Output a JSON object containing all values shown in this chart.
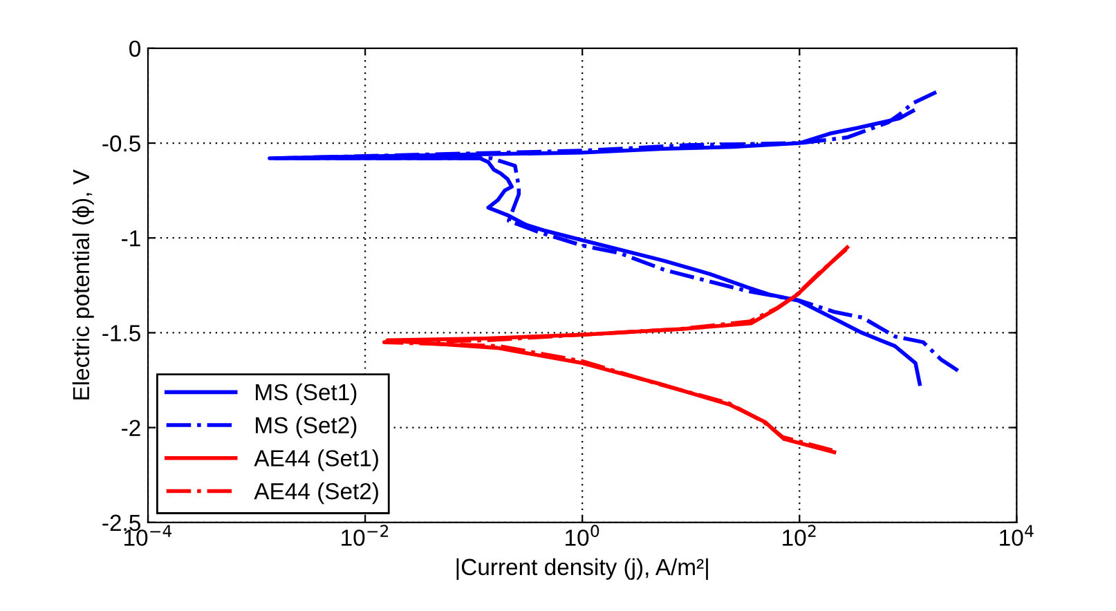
{
  "chart_data": {
    "type": "line",
    "xlabel": "|Current density (j), A/m²|",
    "ylabel": "Electric potential (ϕ), V",
    "log": "x",
    "xlim": [
      0.0001,
      10000
    ],
    "ylim": [
      -2.5,
      0
    ],
    "xticks": [
      {
        "value": 0.0001,
        "label": "10$^{−4}$"
      },
      {
        "value": 0.01,
        "label": "10$^{−2}$"
      },
      {
        "value": 1,
        "label": "10$^{0}$"
      },
      {
        "value": 100,
        "label": "10$^{2}$"
      },
      {
        "value": 10000,
        "label": "10$^{4}$"
      }
    ],
    "yticks": [
      -2.5,
      -2,
      -1.5,
      -1,
      -0.5,
      0
    ],
    "grid": true,
    "legend": "bottom left",
    "marker": "none",
    "series": [
      {
        "name": "MS (Set1)",
        "color": "#0000ff",
        "line_style": "solid",
        "x": [
          1280,
          1170,
          755,
          375,
          234,
          97,
          54,
          33,
          14.9,
          5.6,
          0.97,
          0.44,
          0.3,
          0.205,
          0.136,
          0.167,
          0.193,
          0.224,
          0.205,
          0.177,
          0.153,
          0.136,
          0.114,
          0.029,
          0.0066,
          0.00132,
          0.0103,
          0.093,
          1.0,
          5.6,
          24.4,
          100,
          190,
          344,
          828,
          1110
        ],
        "values": [
          -1.77,
          -1.66,
          -1.57,
          -1.5,
          -1.44,
          -1.33,
          -1.3,
          -1.26,
          -1.19,
          -1.12,
          -1.01,
          -0.96,
          -0.93,
          -0.88,
          -0.84,
          -0.8,
          -0.75,
          -0.73,
          -0.69,
          -0.66,
          -0.64,
          -0.6,
          -0.58,
          -0.58,
          -0.58,
          -0.58,
          -0.57,
          -0.56,
          -0.55,
          -0.53,
          -0.52,
          -0.5,
          -0.45,
          -0.42,
          -0.37,
          -0.33
        ]
      },
      {
        "name": "MS (Set2)",
        "color": "#0000ff",
        "line_style": "dashdot",
        "x": [
          2880,
          2000,
          1380,
          760,
          380,
          209,
          100,
          33,
          5.8,
          2.2,
          1.0,
          0.4,
          0.21,
          0.26,
          0.26,
          0.24,
          0.145,
          0.0015,
          1.0,
          10,
          100,
          275,
          660,
          830,
          1100,
          2000
        ],
        "values": [
          -1.7,
          -1.64,
          -1.55,
          -1.52,
          -1.42,
          -1.39,
          -1.33,
          -1.28,
          -1.17,
          -1.08,
          -1.04,
          -0.97,
          -0.91,
          -0.77,
          -0.73,
          -0.62,
          -0.58,
          -0.58,
          -0.54,
          -0.51,
          -0.5,
          -0.47,
          -0.39,
          -0.35,
          -0.29,
          -0.22
        ]
      },
      {
        "name": "AE44 (Set1)",
        "color": "#ff0000",
        "line_style": "solid",
        "x": [
          209,
          72,
          48,
          23,
          5.2,
          1.0,
          0.166,
          0.016,
          0.126,
          1.0,
          8.3,
          36,
          63,
          95,
          158,
          275
        ],
        "values": [
          -2.13,
          -2.06,
          -1.97,
          -1.88,
          -1.77,
          -1.66,
          -1.58,
          -1.54,
          -1.53,
          -1.51,
          -1.48,
          -1.45,
          -1.37,
          -1.3,
          -1.18,
          -1.05
        ]
      },
      {
        "name": "AE44 (Set2)",
        "color": "#ff0000",
        "line_style": "dashdot",
        "x": [
          200,
          70,
          47,
          22,
          5.0,
          1.0,
          0.17,
          0.015,
          0.13,
          1.0,
          8.0,
          35,
          62,
          94,
          155,
          270
        ],
        "values": [
          -2.12,
          -2.05,
          -1.97,
          -1.87,
          -1.77,
          -1.65,
          -1.57,
          -1.55,
          -1.54,
          -1.51,
          -1.48,
          -1.44,
          -1.37,
          -1.3,
          -1.18,
          -1.06
        ]
      }
    ]
  }
}
